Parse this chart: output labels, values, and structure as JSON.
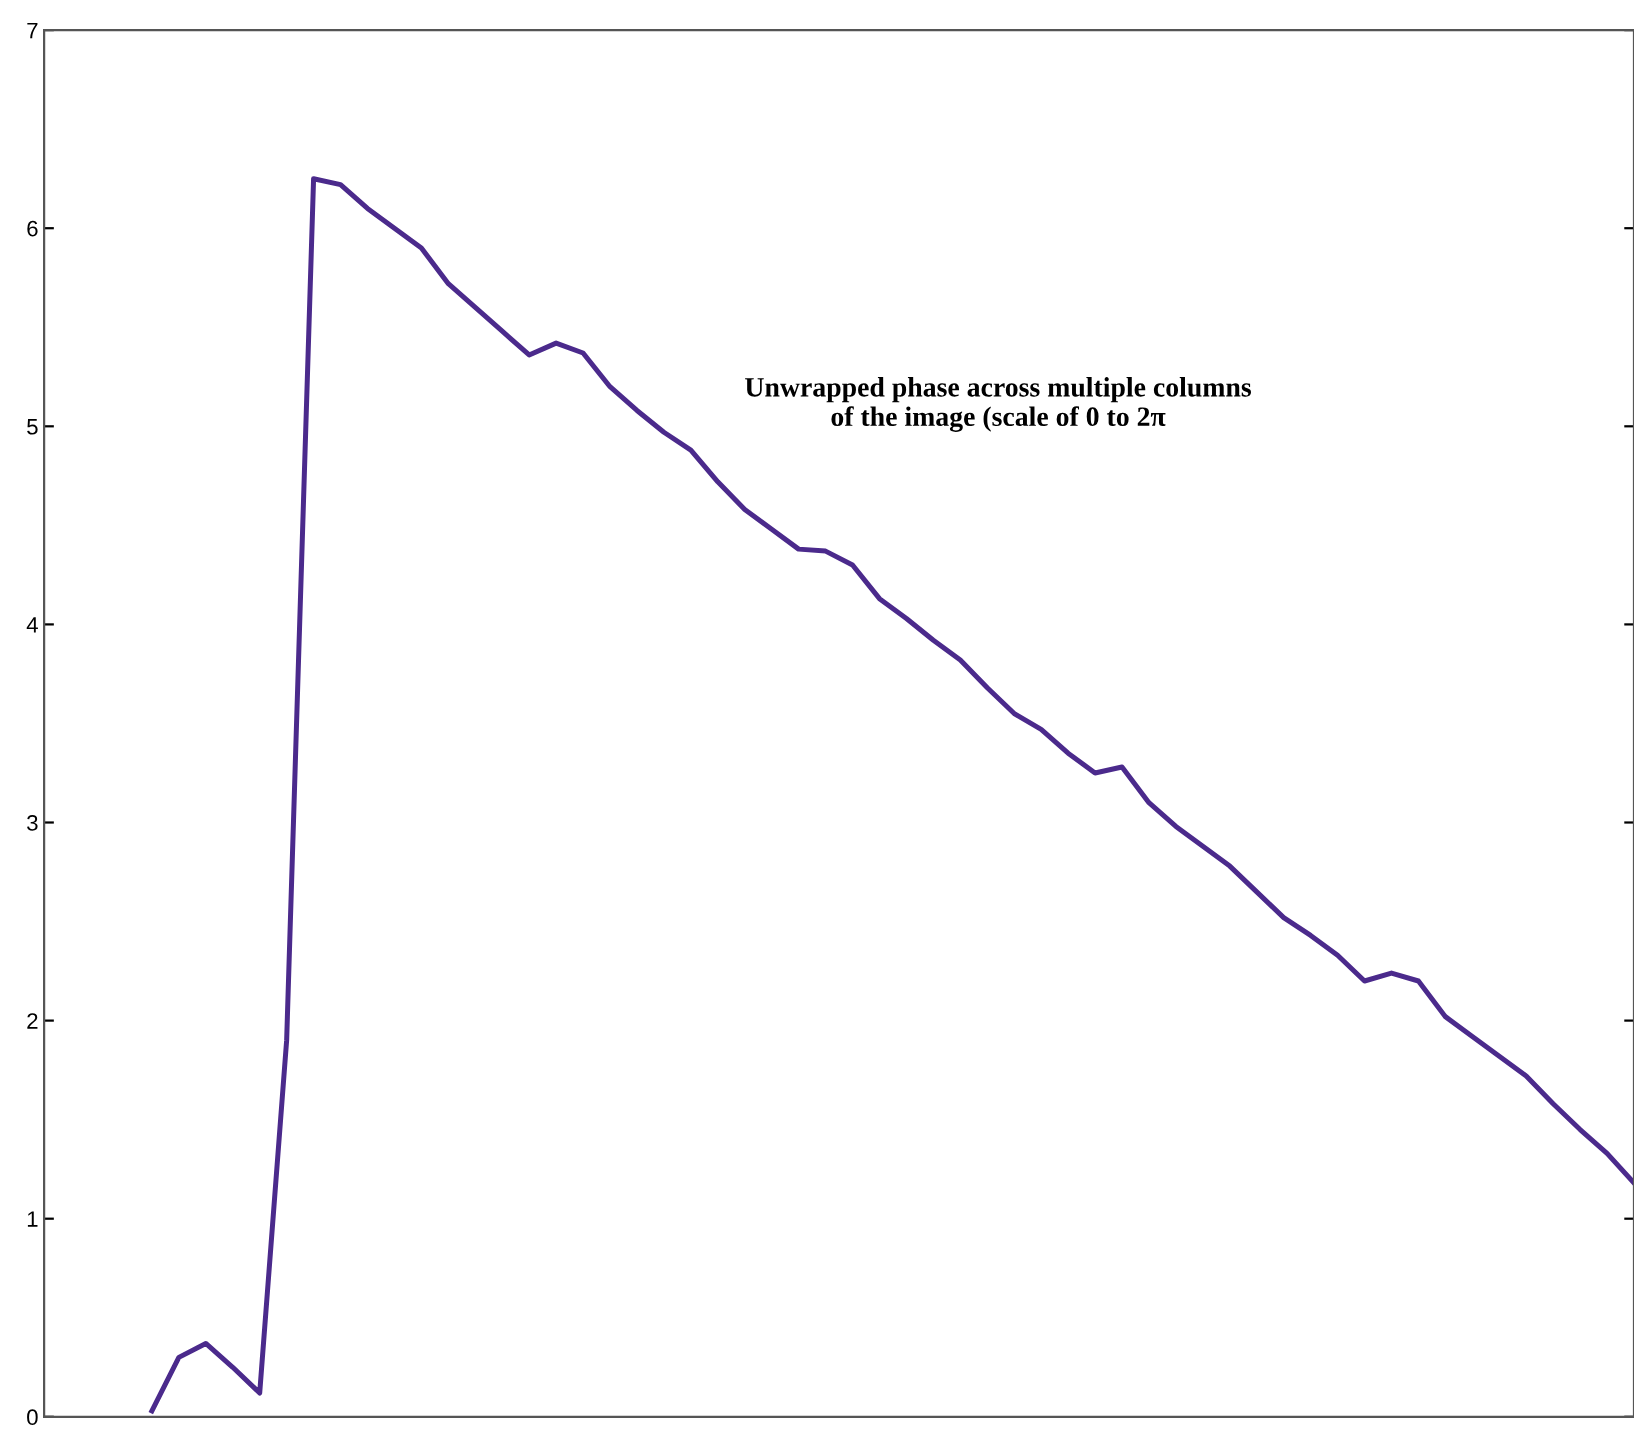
{
  "chart_data": {
    "type": "line",
    "categories": [
      null,
      null,
      null,
      null,
      null,
      null,
      null,
      null,
      null,
      null,
      null,
      null,
      null,
      null,
      null,
      null,
      null,
      null,
      null,
      null,
      null,
      null,
      null,
      null,
      null,
      null,
      null,
      null,
      null,
      null,
      null,
      null,
      null,
      null,
      null,
      null,
      null,
      null,
      null,
      null,
      null,
      null,
      null,
      null,
      null,
      null,
      null,
      null,
      null,
      null,
      null,
      null,
      null,
      null,
      null,
      null,
      null,
      null,
      null,
      null
    ],
    "series": [
      {
        "color": "#4b2a8c",
        "values": [
          null,
          null,
          null,
          null,
          0.03,
          0.3,
          0.37,
          0.25,
          0.12,
          1.9,
          6.25,
          6.22,
          6.1,
          6.0,
          5.9,
          5.72,
          5.6,
          5.48,
          5.36,
          5.42,
          5.37,
          5.2,
          5.08,
          4.97,
          4.88,
          4.72,
          4.58,
          4.48,
          4.38,
          4.37,
          4.3,
          4.13,
          4.03,
          3.92,
          3.82,
          3.68,
          3.55,
          3.47,
          3.35,
          3.25,
          3.28,
          3.1,
          2.98,
          2.88,
          2.78,
          2.65,
          2.52,
          2.43,
          2.33,
          2.2,
          2.24,
          2.2,
          2.02,
          1.92,
          1.82,
          1.72,
          1.58,
          1.45,
          1.33,
          1.18
        ]
      }
    ],
    "ylim": [
      0,
      7
    ],
    "yticks": [
      0,
      1,
      2,
      3,
      4,
      5,
      6,
      7
    ],
    "annotations": [
      "Unwrapped phase across multiple columns\nof the image (scale of 0 to 2π"
    ],
    "grid": false,
    "marker": "none",
    "line_style": "solid"
  }
}
